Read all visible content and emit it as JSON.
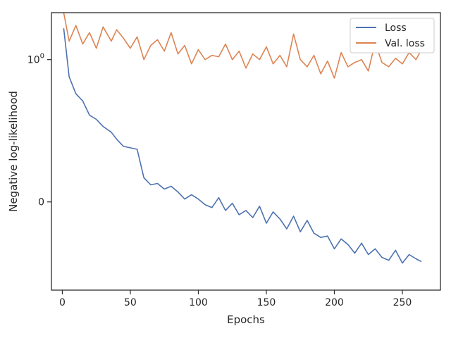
{
  "chart_data": {
    "type": "line",
    "title": "",
    "xlabel": "Epochs",
    "ylabel": "Negative log-likelihood",
    "xlim": [
      -8,
      278
    ],
    "ylim": [
      -0.62,
      1.33
    ],
    "y_scale": "symlog",
    "x_ticks": [
      0,
      50,
      100,
      150,
      200,
      250
    ],
    "y_ticks": [
      {
        "value": 0,
        "label": "0"
      },
      {
        "value": 1,
        "label": "10",
        "exponent": "0"
      }
    ],
    "grid": false,
    "legend": "top-right",
    "series": [
      {
        "name": "Loss",
        "color": "#4c72b0",
        "x": [
          1,
          5,
          10,
          15,
          20,
          25,
          30,
          36,
          40,
          45,
          50,
          55,
          60,
          65,
          70,
          75,
          80,
          85,
          90,
          95,
          100,
          105,
          110,
          115,
          120,
          125,
          130,
          135,
          140,
          145,
          150,
          155,
          160,
          165,
          170,
          175,
          180,
          185,
          190,
          195,
          200,
          205,
          210,
          215,
          220,
          225,
          230,
          235,
          240,
          245,
          250,
          255,
          260,
          264
        ],
        "values": [
          1.22,
          0.88,
          0.76,
          0.71,
          0.61,
          0.58,
          0.53,
          0.49,
          0.44,
          0.39,
          0.38,
          0.37,
          0.17,
          0.12,
          0.13,
          0.09,
          0.11,
          0.07,
          0.02,
          0.05,
          0.02,
          -0.02,
          -0.04,
          0.03,
          -0.06,
          -0.01,
          -0.09,
          -0.06,
          -0.11,
          -0.03,
          -0.15,
          -0.07,
          -0.12,
          -0.19,
          -0.1,
          -0.21,
          -0.13,
          -0.22,
          -0.25,
          -0.24,
          -0.33,
          -0.26,
          -0.3,
          -0.36,
          -0.29,
          -0.37,
          -0.33,
          -0.39,
          -0.41,
          -0.34,
          -0.43,
          -0.37,
          -0.4,
          -0.42
        ]
      },
      {
        "name": "Val. loss",
        "color": "#dd8452",
        "x": [
          1,
          5,
          10,
          15,
          20,
          25,
          30,
          36,
          40,
          45,
          50,
          55,
          60,
          65,
          70,
          75,
          80,
          85,
          90,
          95,
          100,
          105,
          110,
          115,
          120,
          125,
          130,
          135,
          140,
          145,
          150,
          155,
          160,
          165,
          170,
          175,
          180,
          185,
          190,
          195,
          200,
          205,
          210,
          215,
          220,
          225,
          230,
          235,
          240,
          245,
          250,
          255,
          260,
          264
        ],
        "values": [
          1.33,
          1.13,
          1.24,
          1.11,
          1.19,
          1.08,
          1.23,
          1.13,
          1.21,
          1.15,
          1.08,
          1.16,
          1.0,
          1.1,
          1.14,
          1.06,
          1.19,
          1.04,
          1.1,
          0.97,
          1.07,
          1.0,
          1.03,
          1.02,
          1.11,
          1.0,
          1.06,
          0.94,
          1.04,
          1.0,
          1.09,
          0.97,
          1.03,
          0.95,
          1.18,
          1.0,
          0.95,
          1.03,
          0.9,
          0.99,
          0.87,
          1.05,
          0.95,
          0.98,
          1.0,
          0.92,
          1.12,
          0.98,
          0.95,
          1.01,
          0.97,
          1.05,
          1.0,
          1.07
        ]
      }
    ]
  }
}
